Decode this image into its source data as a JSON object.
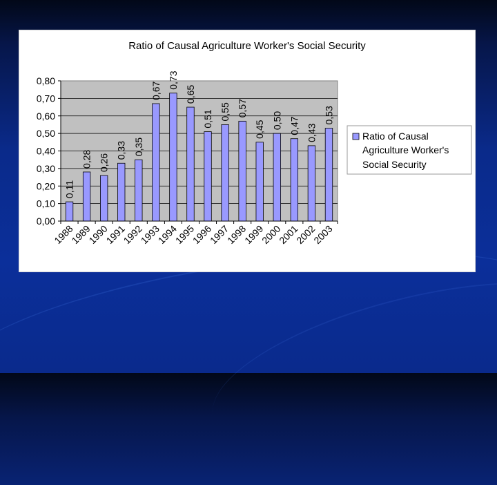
{
  "chart_data": {
    "type": "bar",
    "title": "Ratio of Causal Agriculture Worker's Social Security",
    "categories": [
      "1988",
      "1989",
      "1990",
      "1991",
      "1992",
      "1993",
      "1994",
      "1995",
      "1996",
      "1997",
      "1998",
      "1999",
      "2000",
      "2001",
      "2002",
      "2003"
    ],
    "series": [
      {
        "name": "Ratio of Causal Agriculture Worker's Social Security",
        "values": [
          0.11,
          0.28,
          0.26,
          0.33,
          0.35,
          0.67,
          0.73,
          0.65,
          0.51,
          0.55,
          0.57,
          0.45,
          0.5,
          0.47,
          0.43,
          0.53
        ],
        "labels": [
          "0,11",
          "0,28",
          "0,26",
          "0,33",
          "0,35",
          "0,67",
          "0,73",
          "0,65",
          "0,51",
          "0,55",
          "0,57",
          "0,45",
          "0,50",
          "0,47",
          "0,43",
          "0,53"
        ]
      }
    ],
    "yticks": [
      "0,00",
      "0,10",
      "0,20",
      "0,30",
      "0,40",
      "0,50",
      "0,60",
      "0,70",
      "0,80"
    ],
    "ylim": [
      0,
      0.8
    ],
    "legend_lines": [
      "Ratio of Causal",
      "Agriculture Worker's",
      "Social Security"
    ],
    "legend_position": "right",
    "colors": {
      "bar_fill": "#9999ff",
      "plot_bg": "#c0c0c0",
      "page_bg": "#0a2a8a"
    },
    "grid": true
  }
}
